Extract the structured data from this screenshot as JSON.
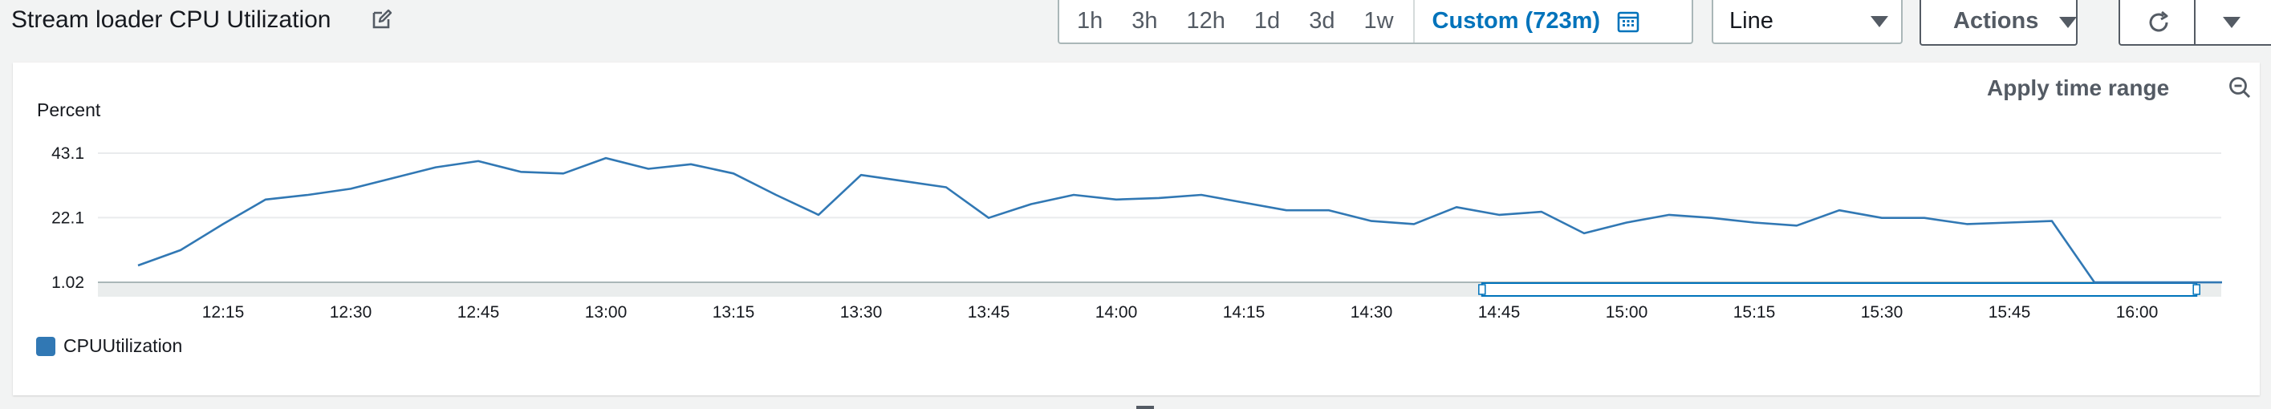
{
  "widget": {
    "title": "Stream loader CPU Utilization",
    "edit_icon": "edit-icon"
  },
  "time_range": {
    "options": [
      "1h",
      "3h",
      "12h",
      "1d",
      "3d",
      "1w"
    ],
    "custom_label": "Custom (723m)",
    "calendar_icon": "calendar-icon"
  },
  "view_type": {
    "selected": "Line"
  },
  "actions": {
    "label": "Actions"
  },
  "refresh": {
    "icon": "refresh-icon",
    "dropdown_icon": "caret-down-icon"
  },
  "panel": {
    "apply_time_range": "Apply time range",
    "zoom_out_icon": "zoom-out-icon",
    "unit": "Percent"
  },
  "colors": {
    "series": "#3178b4",
    "accent": "#0073bb"
  },
  "chart_data": {
    "type": "line",
    "ylabel": "Percent",
    "y_ticks": [
      "43.1",
      "22.1",
      "1.02"
    ],
    "ylim": [
      1.02,
      43.1
    ],
    "x_ticks": [
      "12:15",
      "12:30",
      "12:45",
      "13:00",
      "13:15",
      "13:30",
      "13:45",
      "14:00",
      "14:15",
      "14:30",
      "14:45",
      "15:00",
      "15:15",
      "15:30",
      "15:45",
      "16:00"
    ],
    "grid": true,
    "legend_position": "bottom-left",
    "series": [
      {
        "name": "CPUUtilization",
        "x": [
          "12:05",
          "12:10",
          "12:15",
          "12:20",
          "12:25",
          "12:30",
          "12:35",
          "12:40",
          "12:45",
          "12:50",
          "12:55",
          "13:00",
          "13:05",
          "13:10",
          "13:15",
          "13:20",
          "13:25",
          "13:30",
          "13:35",
          "13:40",
          "13:45",
          "13:50",
          "13:55",
          "14:00",
          "14:05",
          "14:10",
          "14:15",
          "14:20",
          "14:25",
          "14:30",
          "14:35",
          "14:40",
          "14:45",
          "14:50",
          "14:55",
          "15:00",
          "15:05",
          "15:10",
          "15:15",
          "15:20",
          "15:25",
          "15:30",
          "15:35",
          "15:40",
          "15:45",
          "15:50",
          "15:55",
          "16:00",
          "16:05",
          "16:10"
        ],
        "values": [
          6.5,
          11.5,
          20.0,
          28.0,
          29.5,
          31.5,
          35.0,
          38.5,
          40.5,
          37.0,
          36.5,
          41.5,
          38.0,
          39.5,
          36.5,
          29.5,
          23.0,
          36.0,
          34.0,
          32.0,
          22.0,
          26.5,
          29.5,
          28.0,
          28.5,
          29.5,
          27.0,
          24.5,
          24.5,
          21.0,
          20.0,
          25.5,
          23.0,
          24.0,
          17.0,
          20.5,
          23.0,
          22.0,
          20.5,
          19.5,
          24.5,
          22.0,
          22.0,
          20.0,
          20.5,
          21.0,
          1.0,
          1.0,
          1.0,
          1.0
        ]
      }
    ],
    "brush": {
      "start": "14:43",
      "end": "16:07"
    }
  }
}
